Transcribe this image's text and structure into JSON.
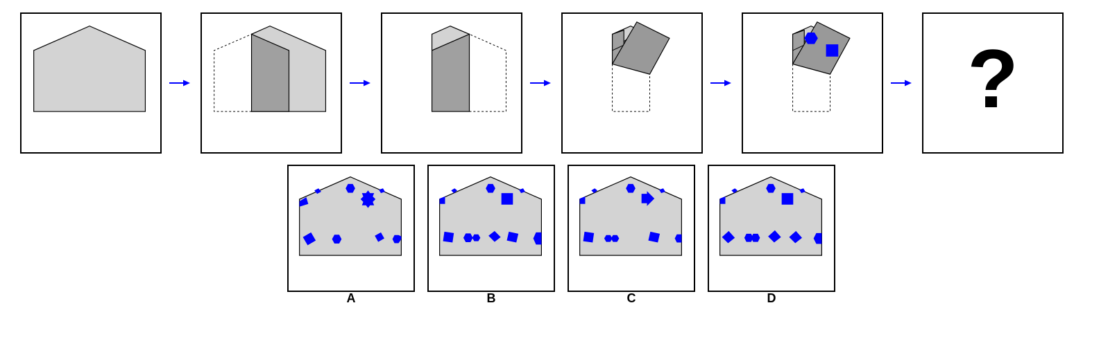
{
  "puzzle": {
    "question_mark": "?",
    "options": [
      {
        "label": "A"
      },
      {
        "label": "B"
      },
      {
        "label": "C"
      },
      {
        "label": "D"
      }
    ]
  },
  "colors": {
    "paper_light": "#d3d3d3",
    "paper_dark": "#a0a0a0",
    "paper_flap": "#999999",
    "marker_blue": "#0000ff",
    "arrow_blue": "#0000ff",
    "outline": "#000000"
  },
  "icons": {
    "step_arrow": "right-arrow-icon",
    "marks": [
      "hexagon",
      "square",
      "octagram",
      "arrow"
    ]
  }
}
